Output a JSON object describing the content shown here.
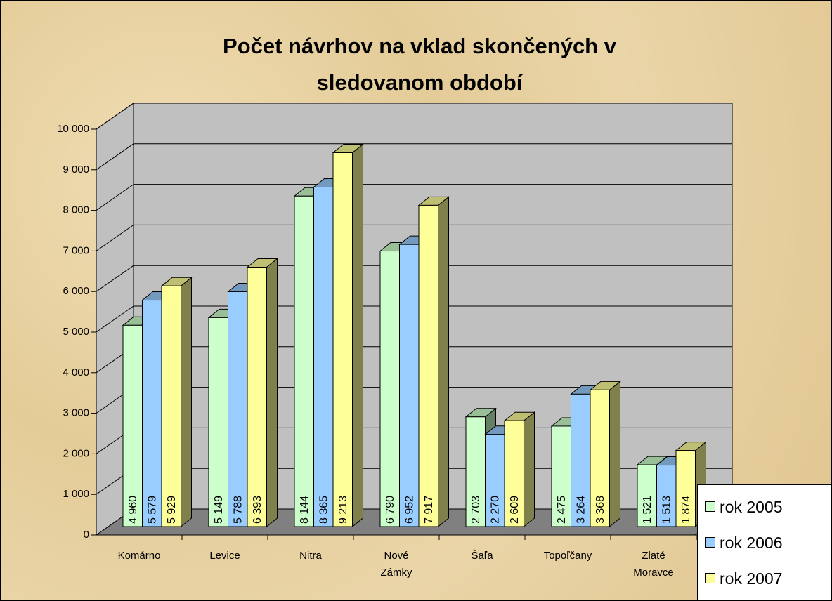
{
  "chart_data": {
    "type": "bar3d",
    "title": "Počet návrhov na vklad skončených v sledovanom období",
    "categories": [
      "Komárno",
      "Levice",
      "Nitra",
      "Nové Zámky",
      "Šaľa",
      "Topoľčany",
      "Zlaté Moravce"
    ],
    "series": [
      {
        "name": "rok 2005",
        "color": "#ccffcc",
        "values": [
          4960,
          5149,
          8144,
          6790,
          2703,
          2475,
          1521
        ],
        "value_labels": [
          "4 960",
          "5 149",
          "8 144",
          "6 790",
          "2 703",
          "2 475",
          "1 521"
        ]
      },
      {
        "name": "rok 2006",
        "color": "#99ccff",
        "values": [
          5579,
          5788,
          8365,
          6952,
          2270,
          3264,
          1513
        ],
        "value_labels": [
          "5 579",
          "5 788",
          "8 365",
          "6 952",
          "2 270",
          "3 264",
          "1 513"
        ]
      },
      {
        "name": "rok 2007",
        "color": "#ffff99",
        "values": [
          5929,
          6393,
          9213,
          7917,
          2609,
          3368,
          1874
        ],
        "value_labels": [
          "5 929",
          "6 393",
          "9 213",
          "7 917",
          "2 609",
          "3 368",
          "1 874"
        ]
      }
    ],
    "ylim": [
      0,
      10000
    ],
    "yticks": [
      0,
      {
        "value": 1000,
        "label": "1 000"
      },
      {
        "value": 2000,
        "label": "2 000"
      },
      {
        "value": 3000,
        "label": "3 000"
      },
      {
        "value": 4000,
        "label": "4 000"
      },
      {
        "value": 5000,
        "label": "5 000"
      },
      {
        "value": 6000,
        "label": "6 000"
      },
      {
        "value": 7000,
        "label": "7 000"
      },
      {
        "value": 8000,
        "label": "8 000"
      },
      {
        "value": 9000,
        "label": "9 000"
      },
      {
        "value": 10000,
        "label": "10 000"
      }
    ],
    "grid": true,
    "legend": "bottom-right"
  }
}
